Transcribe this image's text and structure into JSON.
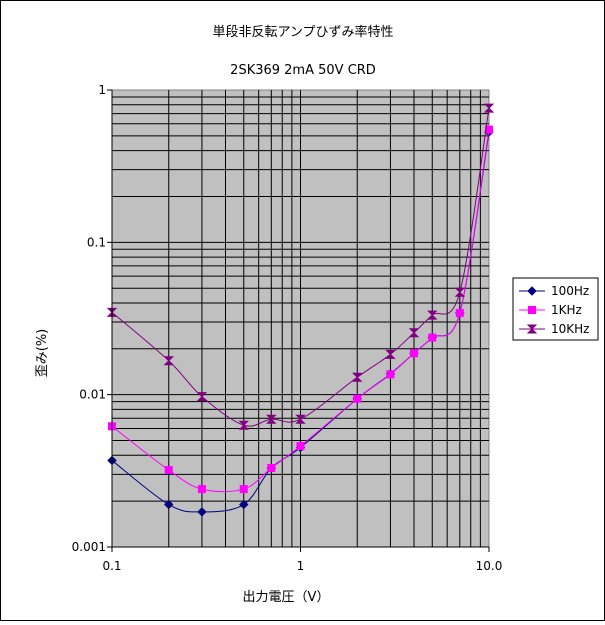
{
  "chart_data": {
    "type": "line",
    "title": "単段非反転アンプひずみ率特性",
    "subtitle": "2SK369 2mA 50V CRD",
    "xlabel": "出力電圧（V）",
    "ylabel": "歪み(%)",
    "xscale": "log",
    "yscale": "log",
    "xlim": [
      0.1,
      10
    ],
    "ylim": [
      0.001,
      1
    ],
    "x_ticks": [
      "0.1",
      "1",
      "10.0"
    ],
    "y_ticks": [
      "1",
      "0.1",
      "0.01",
      "0.001"
    ],
    "grid": true,
    "legend_position": "right",
    "series": [
      {
        "name": "100Hz",
        "color": "#000080",
        "marker": "diamond",
        "x": [
          0.1,
          0.2,
          0.3,
          0.5,
          0.7,
          1,
          2,
          3,
          4,
          5,
          7,
          10
        ],
        "y": [
          0.0037,
          0.0019,
          0.0017,
          0.0019,
          0.0033,
          0.0045,
          0.0094,
          0.0137,
          0.0187,
          0.0237,
          0.0344,
          0.53
        ]
      },
      {
        "name": "1KHz",
        "color": "#ff00ff",
        "marker": "square",
        "x": [
          0.1,
          0.2,
          0.3,
          0.5,
          0.7,
          1,
          2,
          3,
          4,
          5,
          7,
          10
        ],
        "y": [
          0.0062,
          0.0032,
          0.0024,
          0.0024,
          0.0033,
          0.0046,
          0.0094,
          0.0136,
          0.0187,
          0.0237,
          0.0344,
          0.55
        ]
      },
      {
        "name": "10KHz",
        "color": "#800080",
        "marker": "hourglass",
        "x": [
          0.1,
          0.2,
          0.3,
          0.5,
          0.7,
          1,
          2,
          3,
          4,
          5,
          7,
          10
        ],
        "y": [
          0.0347,
          0.0167,
          0.0097,
          0.0063,
          0.0069,
          0.0069,
          0.013,
          0.0184,
          0.0255,
          0.0333,
          0.047,
          0.76
        ]
      }
    ]
  }
}
